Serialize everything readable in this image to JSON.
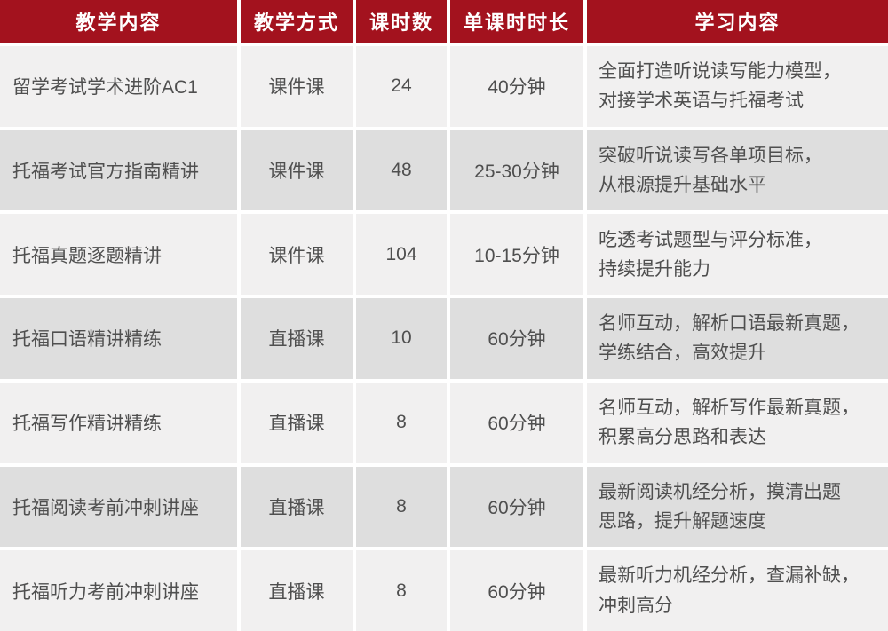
{
  "colors": {
    "header_bg": "#a3121e",
    "header_text": "#ffffff",
    "row_light": "#f1f0f0",
    "row_dark": "#dedede",
    "text": "#4f4f4f",
    "separator": "#ffffff"
  },
  "table": {
    "header": [
      "教学内容",
      "教学方式",
      "课时数",
      "单课时时长",
      "学习内容"
    ],
    "rows": [
      [
        "留学考试学术进阶AC1",
        "课件课",
        "24",
        "40分钟",
        "全面打造听说读写能力模型，\n对接学术英语与托福考试"
      ],
      [
        "托福考试官方指南精讲",
        "课件课",
        "48",
        "25-30分钟",
        "突破听说读写各单项目标，\n从根源提升基础水平"
      ],
      [
        "托福真题逐题精讲",
        "课件课",
        "104",
        "10-15分钟",
        "吃透考试题型与评分标准，\n持续提升能力"
      ],
      [
        "托福口语精讲精练",
        "直播课",
        "10",
        "60分钟",
        "名师互动，解析口语最新真题，\n学练结合，高效提升"
      ],
      [
        "托福写作精讲精练",
        "直播课",
        "8",
        "60分钟",
        "名师互动，解析写作最新真题，\n积累高分思路和表达"
      ],
      [
        "托福阅读考前冲刺讲座",
        "直播课",
        "8",
        "60分钟",
        "最新阅读机经分析，摸清出题\n思路，提升解题速度"
      ],
      [
        "托福听力考前冲刺讲座",
        "直播课",
        "8",
        "60分钟",
        "最新听力机经分析，查漏补缺，\n冲刺高分"
      ]
    ]
  },
  "chart_data": {
    "type": "table",
    "columns": [
      "教学内容",
      "教学方式",
      "课时数",
      "单课时时长",
      "学习内容"
    ],
    "rows": [
      [
        "留学考试学术进阶AC1",
        "课件课",
        24,
        "40分钟",
        "全面打造听说读写能力模型，对接学术英语与托福考试"
      ],
      [
        "托福考试官方指南精讲",
        "课件课",
        48,
        "25-30分钟",
        "突破听说读写各单项目标，从根源提升基础水平"
      ],
      [
        "托福真题逐题精讲",
        "课件课",
        104,
        "10-15分钟",
        "吃透考试题型与评分标准，持续提升能力"
      ],
      [
        "托福口语精讲精练",
        "直播课",
        10,
        "60分钟",
        "名师互动，解析口语最新真题，学练结合，高效提升"
      ],
      [
        "托福写作精讲精练",
        "直播课",
        8,
        "60分钟",
        "名师互动，解析写作最新真题，积累高分思路和表达"
      ],
      [
        "托福阅读考前冲刺讲座",
        "直播课",
        8,
        "60分钟",
        "最新阅读机经分析，摸清出题思路，提升解题速度"
      ],
      [
        "托福听力考前冲刺讲座",
        "直播课",
        8,
        "60分钟",
        "最新听力机经分析，查漏补缺，冲刺高分"
      ]
    ]
  }
}
